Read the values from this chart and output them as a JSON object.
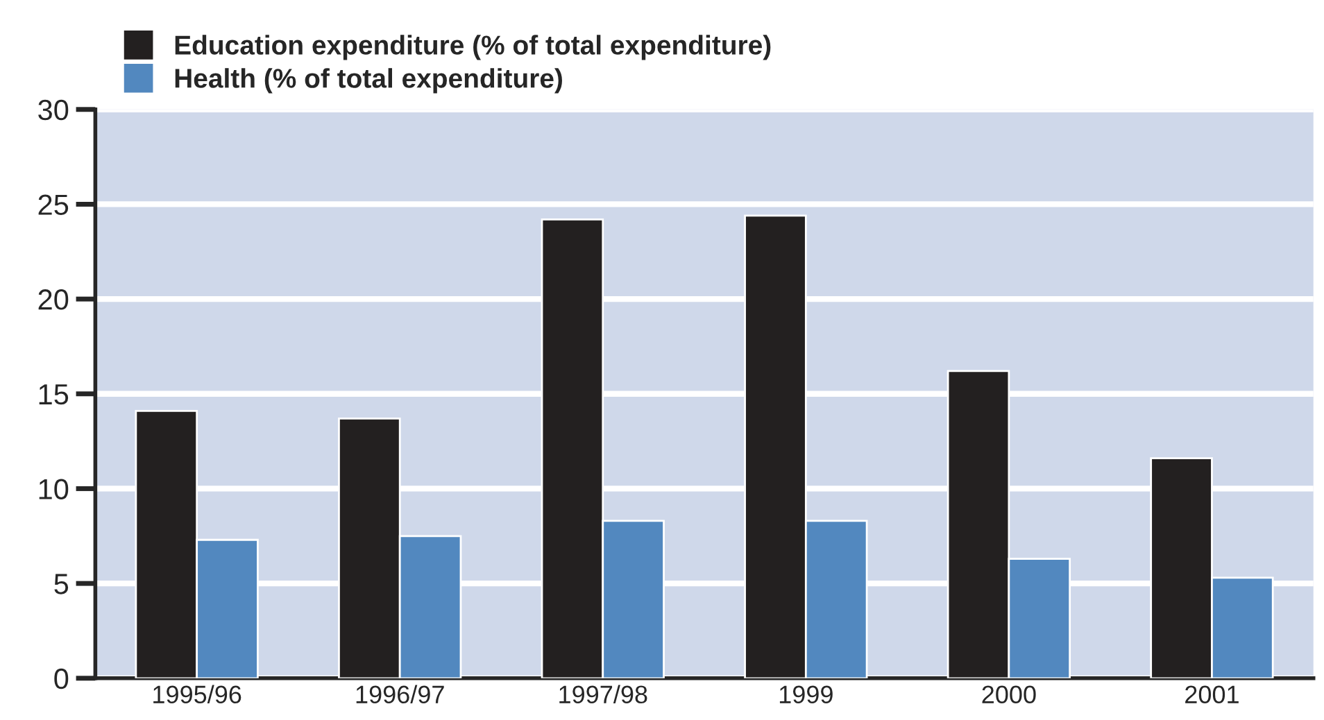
{
  "chart_data": {
    "type": "bar",
    "categories": [
      "1995/96",
      "1996/97",
      "1997/98",
      "1999",
      "2000",
      "2001"
    ],
    "series": [
      {
        "name": "Education expenditure (% of total expenditure)",
        "color": "#232020",
        "values": [
          14.1,
          13.7,
          24.2,
          24.4,
          16.2,
          11.6
        ]
      },
      {
        "name": "Health (% of total expenditure)",
        "color": "#5288bf",
        "values": [
          7.3,
          7.5,
          8.3,
          8.3,
          6.3,
          5.3
        ]
      }
    ],
    "ylim": [
      0,
      30
    ],
    "yticks": [
      0,
      5,
      10,
      15,
      20,
      25,
      30
    ],
    "grid": "y",
    "legend": "top left"
  }
}
